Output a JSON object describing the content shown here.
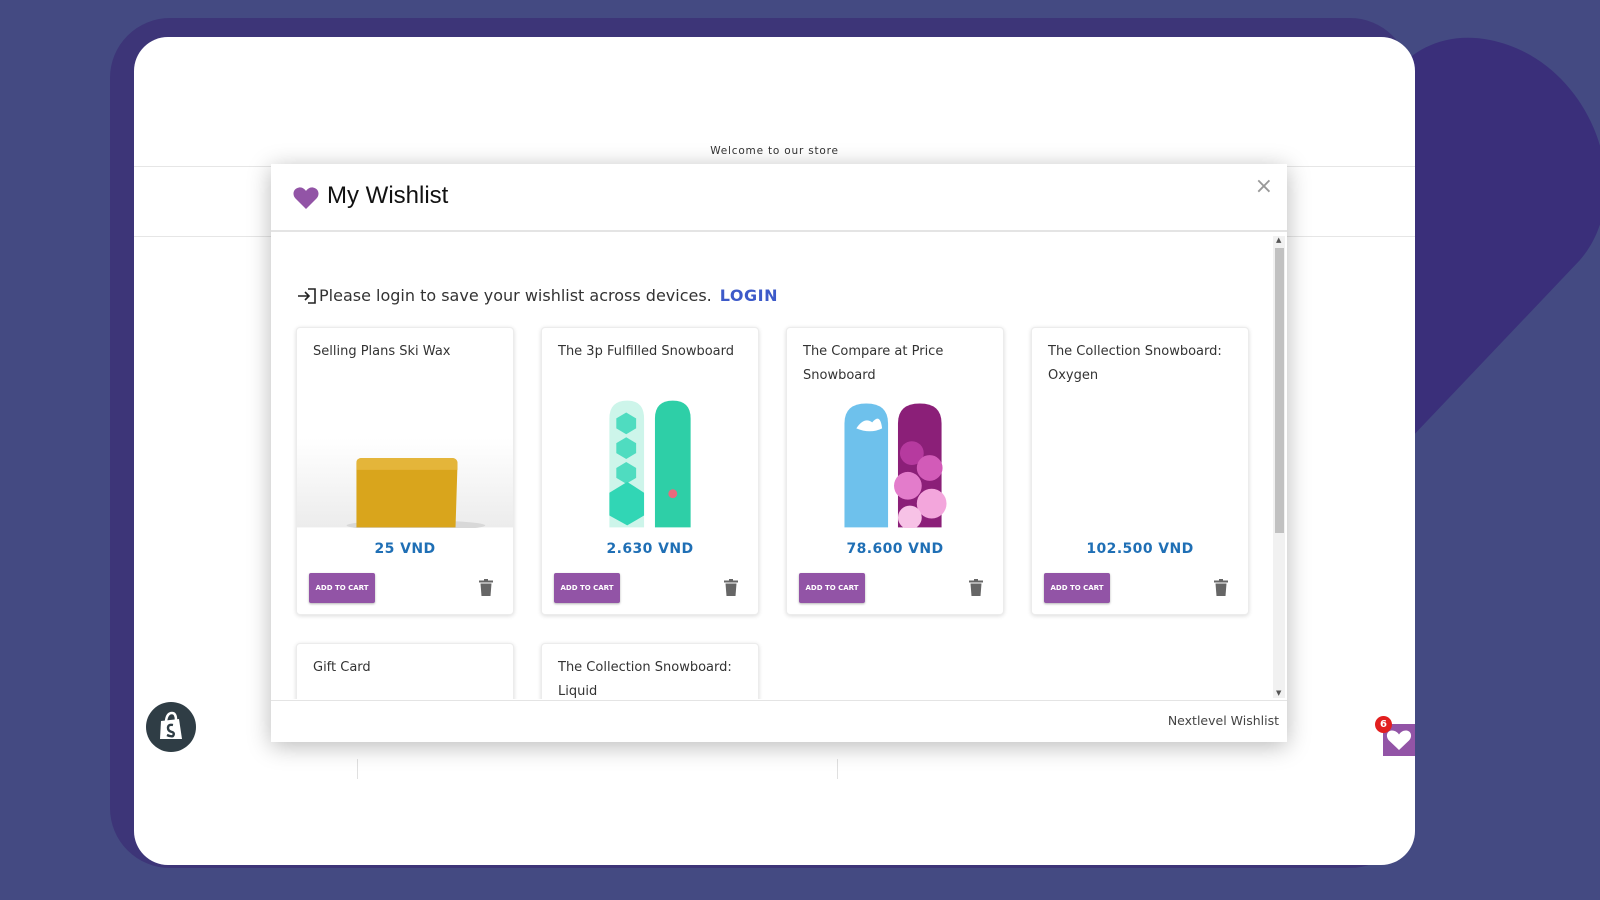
{
  "store": {
    "banner": "Welcome to our store"
  },
  "modal": {
    "title": "My Wishlist",
    "close_label": "×",
    "login_prompt": "Please login to save your wishlist across devices.",
    "login_link": "LOGIN",
    "footer": "Nextlevel Wishlist",
    "add_to_cart_label": "ADD TO CART"
  },
  "products": [
    {
      "title": "Selling Plans Ski Wax",
      "price": "25 VND",
      "image": "wax-block"
    },
    {
      "title": "The 3p Fulfilled Snowboard",
      "price": "2.630 VND",
      "image": "teal-snowboards"
    },
    {
      "title": "The Compare at Price Snowboard",
      "price": "78.600 VND",
      "image": "blue-pink-snowboards"
    },
    {
      "title": "The Collection Snowboard: Oxygen",
      "price": "102.500 VND",
      "image": "none"
    },
    {
      "title": "Gift Card",
      "price": "",
      "image": "none"
    },
    {
      "title": "The Collection Snowboard: Liquid",
      "price": "",
      "image": "none"
    }
  ],
  "wishlist_fab": {
    "count": "6",
    "icon": "heart-icon"
  },
  "colors": {
    "background": "#444a82",
    "accent_purple": "#9254a6",
    "price_blue": "#1f6fb5",
    "login_blue": "#3d5ac9",
    "badge_red": "#e21f1f"
  }
}
